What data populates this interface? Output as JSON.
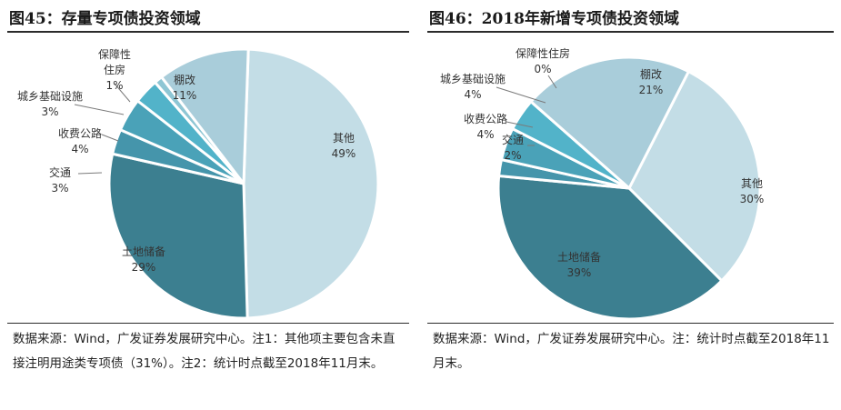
{
  "chart_data": [
    {
      "type": "pie",
      "title": "图45：存量专项债投资领域",
      "slices": [
        {
          "label": "其他",
          "display": [
            "其他"
          ],
          "value": 49,
          "pct": "49%",
          "color": "#c3dde6"
        },
        {
          "label": "土地储备",
          "display": [
            "土地储备"
          ],
          "value": 29,
          "pct": "29%",
          "color": "#3c7f90"
        },
        {
          "label": "交通",
          "display": [
            "交通"
          ],
          "value": 3,
          "pct": "3%",
          "color": "#4595ab"
        },
        {
          "label": "收费公路",
          "display": [
            "收费公路"
          ],
          "value": 4,
          "pct": "4%",
          "color": "#4aa2b8"
        },
        {
          "label": "城乡基础设施",
          "display": [
            "城乡基础设施"
          ],
          "value": 3,
          "pct": "3%",
          "color": "#52b3c9"
        },
        {
          "label": "保障性住房",
          "display": [
            "保障性",
            "住房"
          ],
          "value": 1,
          "pct": "1%",
          "color": "#8ec6d4"
        },
        {
          "label": "棚改",
          "display": [
            "棚改"
          ],
          "value": 11,
          "pct": "11%",
          "color": "#a9cdda"
        }
      ],
      "note": "数据来源：Wind，广发证券发展研究中心。注1：其他项主要包含未直接注明用途类专项债（31%）。注2：统计时点截至2018年11月末。"
    },
    {
      "type": "pie",
      "title": "图46：2018年新增专项债投资领域",
      "slices": [
        {
          "label": "其他",
          "display": [
            "其他"
          ],
          "value": 30,
          "pct": "30%",
          "color": "#c3dde6"
        },
        {
          "label": "土地储备",
          "display": [
            "土地储备"
          ],
          "value": 39,
          "pct": "39%",
          "color": "#3c7f90"
        },
        {
          "label": "交通",
          "display": [
            "交通"
          ],
          "value": 2,
          "pct": "2%",
          "color": "#4595ab"
        },
        {
          "label": "收费公路",
          "display": [
            "收费公路"
          ],
          "value": 4,
          "pct": "4%",
          "color": "#4aa2b8"
        },
        {
          "label": "城乡基础设施",
          "display": [
            "城乡基础设施"
          ],
          "value": 4,
          "pct": "4%",
          "color": "#52b3c9"
        },
        {
          "label": "保障性住房",
          "display": [
            "保障性住房"
          ],
          "value": 0,
          "pct": "0%",
          "color": "#8ec6d4"
        },
        {
          "label": "棚改",
          "display": [
            "棚改"
          ],
          "value": 21,
          "pct": "21%",
          "color": "#a9cdda"
        }
      ],
      "note": "数据来源：Wind，广发证券发展研究中心。注：统计时点截至2018年11月末。"
    }
  ]
}
